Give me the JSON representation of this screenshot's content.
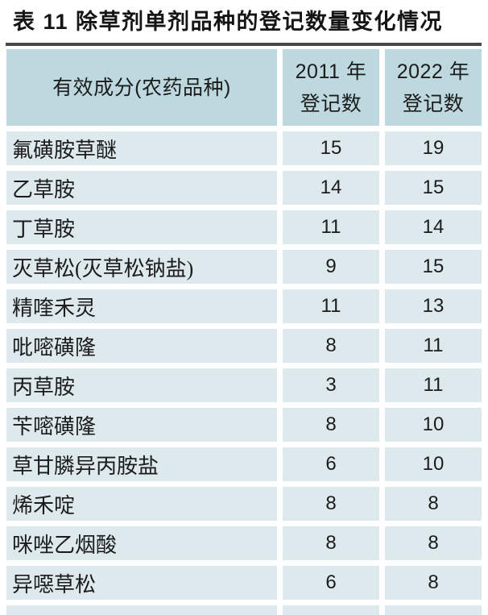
{
  "caption": "表 11  除草剂单剂品种的登记数量变化情况",
  "colors": {
    "header_bg": "#bdd8de",
    "row_bg": "#dde9ec",
    "rule": "#474747",
    "text": "#1c1c1c"
  },
  "table": {
    "header": {
      "ingredient": "有效成分(农药品种)",
      "y2011_line1": "2011 年",
      "y2011_line2": "登记数",
      "y2022_line1": "2022 年",
      "y2022_line2": "登记数"
    },
    "rows": [
      {
        "name": "氟磺胺草醚",
        "y2011": "15",
        "y2022": "19"
      },
      {
        "name": "乙草胺",
        "y2011": "14",
        "y2022": "15"
      },
      {
        "name": "丁草胺",
        "y2011": "11",
        "y2022": "14"
      },
      {
        "name": "灭草松(灭草松钠盐)",
        "y2011": "9",
        "y2022": "15"
      },
      {
        "name": "精喹禾灵",
        "y2011": "11",
        "y2022": "13"
      },
      {
        "name": "吡嘧磺隆",
        "y2011": "8",
        "y2022": "11"
      },
      {
        "name": "丙草胺",
        "y2011": "3",
        "y2022": "11"
      },
      {
        "name": "苄嘧磺隆",
        "y2011": "8",
        "y2022": "10"
      },
      {
        "name": "草甘膦异丙胺盐",
        "y2011": "6",
        "y2022": "10"
      },
      {
        "name": "烯禾啶",
        "y2011": "8",
        "y2022": "8"
      },
      {
        "name": "咪唑乙烟酸",
        "y2011": "8",
        "y2022": "8"
      },
      {
        "name": "异噁草松",
        "y2011": "6",
        "y2022": "8"
      }
    ]
  }
}
